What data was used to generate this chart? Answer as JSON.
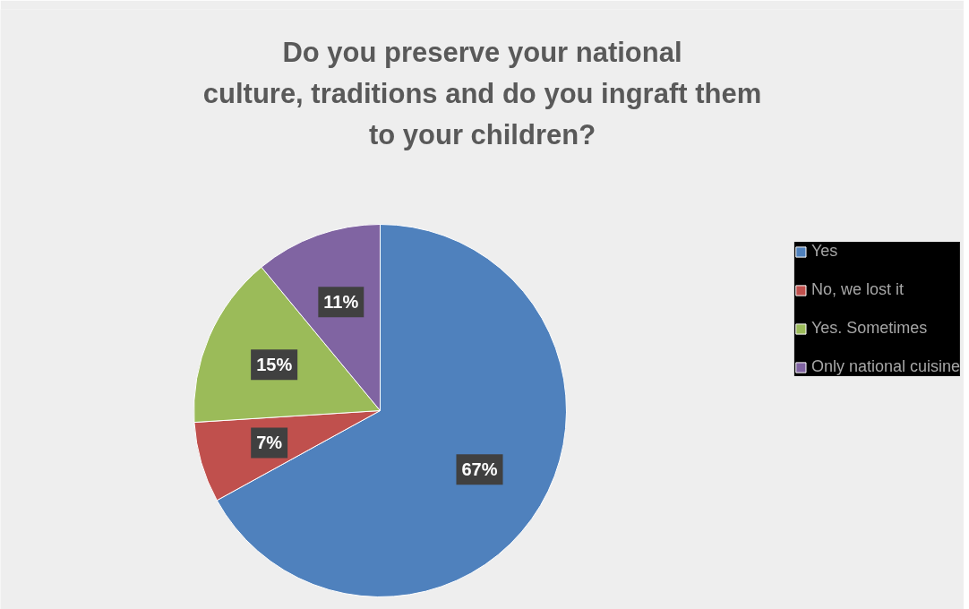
{
  "chart_data": {
    "type": "pie",
    "title": "Do you preserve your national\nculture, traditions and do you ingraft them\nto your children?",
    "categories": [
      "Yes",
      "No, we lost it",
      "Yes. Sometimes",
      "Only national cuisine"
    ],
    "values": [
      67,
      7,
      15,
      11
    ],
    "colors": [
      "#4f81bd",
      "#c0504d",
      "#9bbb59",
      "#8064a2"
    ],
    "value_labels": [
      "67%",
      "7%",
      "15%",
      "11%"
    ],
    "legend": "right"
  }
}
